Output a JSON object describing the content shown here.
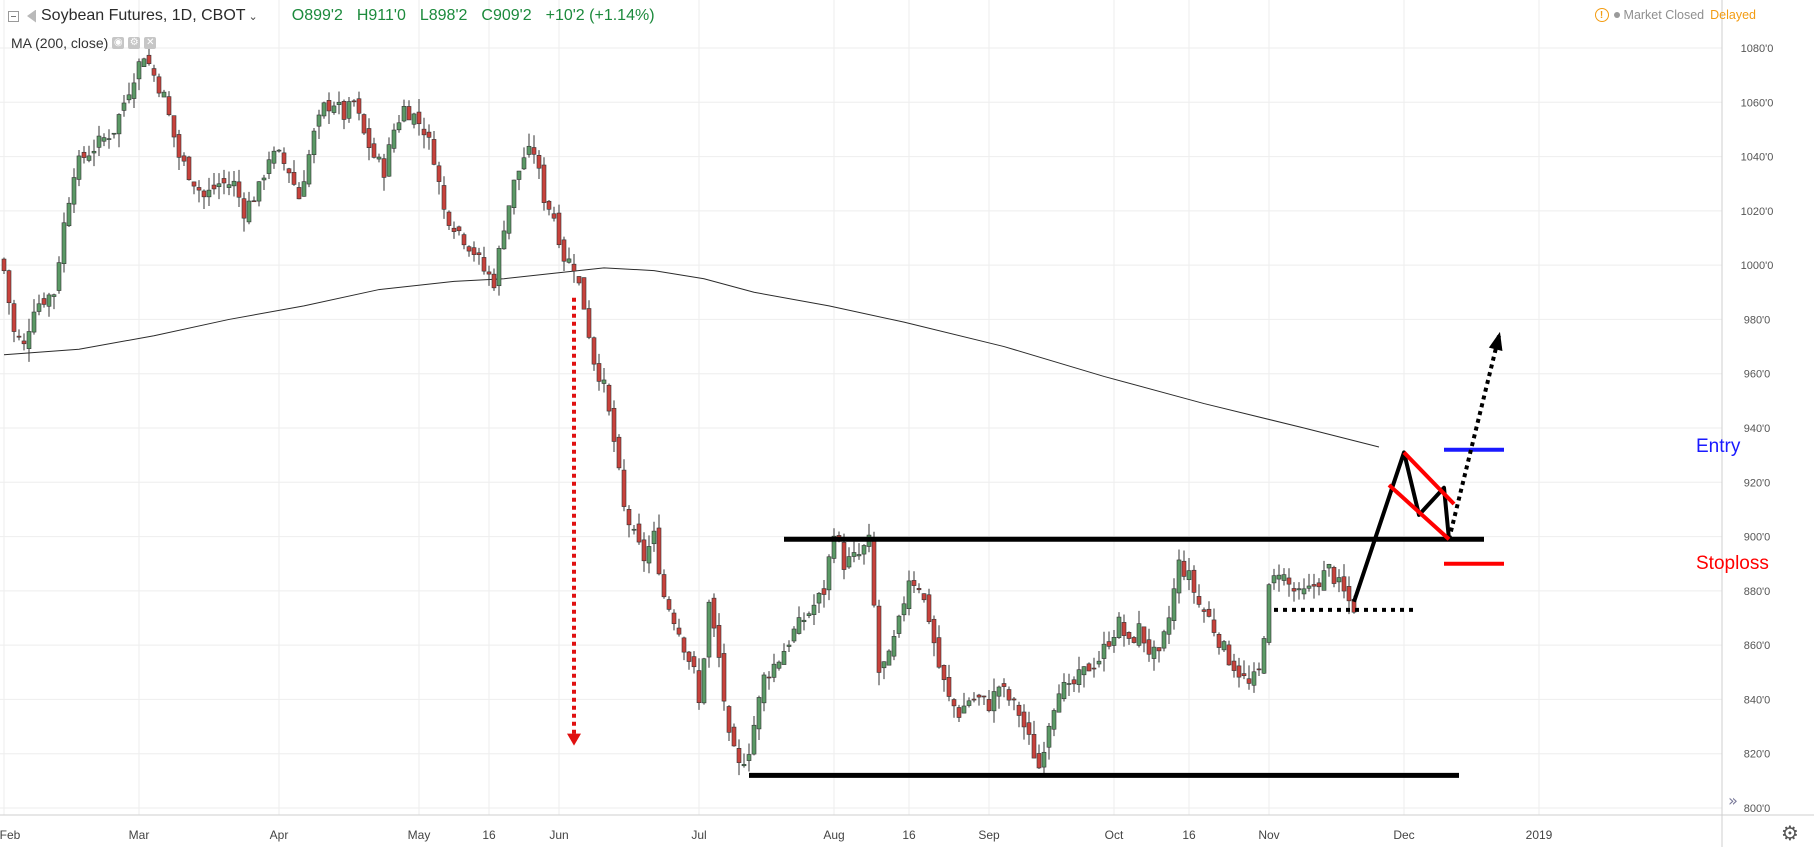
{
  "header": {
    "symbol": "Soybean Futures, 1D, CBOT",
    "open": "O899'2",
    "high": "H911'0",
    "low": "L898'2",
    "close": "C909'2",
    "change": "+10'2 (+1.14%)"
  },
  "indicator": {
    "label": "MA (200, close)"
  },
  "status": {
    "market": "Market Closed",
    "delayed": "Delayed"
  },
  "annotations": {
    "entry": "Entry",
    "stoploss": "Stoploss"
  },
  "colors": {
    "up": "#5b9a66",
    "down": "#c8423c",
    "ma": "#2b2b2b",
    "entry": "#1a1aff",
    "stoploss": "#ff0000",
    "grid": "#eeeeee"
  },
  "chart_data": {
    "type": "candlestick",
    "title": "Soybean Futures, 1D, CBOT",
    "ylim": [
      796,
      1088
    ],
    "y_ticks": [
      "800'0",
      "820'0",
      "840'0",
      "860'0",
      "880'0",
      "900'0",
      "920'0",
      "940'0",
      "960'0",
      "980'0",
      "1000'0",
      "1020'0",
      "1040'0",
      "1060'0",
      "1080'0"
    ],
    "x_ticks": [
      {
        "label": "Feb",
        "day": 0
      },
      {
        "label": "Mar",
        "day": 27
      },
      {
        "label": "Apr",
        "day": 55
      },
      {
        "label": "May",
        "day": 83
      },
      {
        "label": "16",
        "day": 97
      },
      {
        "label": "Jun",
        "day": 111
      },
      {
        "label": "Jul",
        "day": 139
      },
      {
        "label": "Aug",
        "day": 166
      },
      {
        "label": "16",
        "day": 181
      },
      {
        "label": "Sep",
        "day": 197
      },
      {
        "label": "Oct",
        "day": 222
      },
      {
        "label": "16",
        "day": 237
      },
      {
        "label": "Nov",
        "day": 253
      },
      {
        "label": "Dec",
        "day": 280
      },
      {
        "label": "2019",
        "day": 307
      }
    ],
    "anchors": [
      {
        "day": 0,
        "close": 998
      },
      {
        "day": 2,
        "close": 975
      },
      {
        "day": 4,
        "close": 970
      },
      {
        "day": 6,
        "close": 985
      },
      {
        "day": 10,
        "close": 990
      },
      {
        "day": 12,
        "close": 1015
      },
      {
        "day": 14,
        "close": 1035
      },
      {
        "day": 16,
        "close": 1040
      },
      {
        "day": 19,
        "close": 1045
      },
      {
        "day": 22,
        "close": 1050
      },
      {
        "day": 26,
        "close": 1070
      },
      {
        "day": 28,
        "close": 1078
      },
      {
        "day": 32,
        "close": 1062
      },
      {
        "day": 35,
        "close": 1040
      },
      {
        "day": 40,
        "close": 1025
      },
      {
        "day": 43,
        "close": 1030
      },
      {
        "day": 46,
        "close": 1030
      },
      {
        "day": 48,
        "close": 1020
      },
      {
        "day": 51,
        "close": 1028
      },
      {
        "day": 53,
        "close": 1040
      },
      {
        "day": 55,
        "close": 1040
      },
      {
        "day": 57,
        "close": 1035
      },
      {
        "day": 59,
        "close": 1025
      },
      {
        "day": 60,
        "close": 1033
      },
      {
        "day": 62,
        "close": 1048
      },
      {
        "day": 64,
        "close": 1058
      },
      {
        "day": 66,
        "close": 1060
      },
      {
        "day": 68,
        "close": 1055
      },
      {
        "day": 70,
        "close": 1060
      },
      {
        "day": 72,
        "close": 1048
      },
      {
        "day": 74,
        "close": 1040
      },
      {
        "day": 76,
        "close": 1035
      },
      {
        "day": 78,
        "close": 1050
      },
      {
        "day": 80,
        "close": 1058
      },
      {
        "day": 82,
        "close": 1055
      },
      {
        "day": 84,
        "close": 1050
      },
      {
        "day": 86,
        "close": 1040
      },
      {
        "day": 88,
        "close": 1020
      },
      {
        "day": 90,
        "close": 1015
      },
      {
        "day": 92,
        "close": 1010
      },
      {
        "day": 94,
        "close": 1005
      },
      {
        "day": 96,
        "close": 998
      },
      {
        "day": 98,
        "close": 994
      },
      {
        "day": 100,
        "close": 1015
      },
      {
        "day": 102,
        "close": 1030
      },
      {
        "day": 104,
        "close": 1040
      },
      {
        "day": 106,
        "close": 1042
      },
      {
        "day": 108,
        "close": 1025
      },
      {
        "day": 110,
        "close": 1018
      },
      {
        "day": 112,
        "close": 1003
      },
      {
        "day": 114,
        "close": 1000
      },
      {
        "day": 116,
        "close": 985
      },
      {
        "day": 118,
        "close": 965
      },
      {
        "day": 120,
        "close": 955
      },
      {
        "day": 122,
        "close": 935
      },
      {
        "day": 124,
        "close": 910
      },
      {
        "day": 126,
        "close": 900
      },
      {
        "day": 128,
        "close": 892
      },
      {
        "day": 130,
        "close": 900
      },
      {
        "day": 132,
        "close": 878
      },
      {
        "day": 134,
        "close": 870
      },
      {
        "day": 136,
        "close": 860
      },
      {
        "day": 138,
        "close": 850
      },
      {
        "day": 139,
        "close": 838
      },
      {
        "day": 141,
        "close": 875
      },
      {
        "day": 143,
        "close": 855
      },
      {
        "day": 145,
        "close": 825
      },
      {
        "day": 147,
        "close": 815
      },
      {
        "day": 149,
        "close": 822
      },
      {
        "day": 152,
        "close": 848
      },
      {
        "day": 155,
        "close": 855
      },
      {
        "day": 158,
        "close": 865
      },
      {
        "day": 161,
        "close": 872
      },
      {
        "day": 164,
        "close": 880
      },
      {
        "day": 166,
        "close": 903
      },
      {
        "day": 168,
        "close": 890
      },
      {
        "day": 171,
        "close": 893
      },
      {
        "day": 173,
        "close": 898
      },
      {
        "day": 175,
        "close": 850
      },
      {
        "day": 177,
        "close": 855
      },
      {
        "day": 179,
        "close": 868
      },
      {
        "day": 181,
        "close": 885
      },
      {
        "day": 183,
        "close": 882
      },
      {
        "day": 185,
        "close": 870
      },
      {
        "day": 187,
        "close": 852
      },
      {
        "day": 189,
        "close": 840
      },
      {
        "day": 191,
        "close": 835
      },
      {
        "day": 193,
        "close": 840
      },
      {
        "day": 195,
        "close": 840
      },
      {
        "day": 197,
        "close": 838
      },
      {
        "day": 199,
        "close": 845
      },
      {
        "day": 201,
        "close": 840
      },
      {
        "day": 203,
        "close": 835
      },
      {
        "day": 205,
        "close": 825
      },
      {
        "day": 207,
        "close": 815
      },
      {
        "day": 209,
        "close": 832
      },
      {
        "day": 211,
        "close": 845
      },
      {
        "day": 213,
        "close": 843
      },
      {
        "day": 215,
        "close": 848
      },
      {
        "day": 217,
        "close": 852
      },
      {
        "day": 219,
        "close": 855
      },
      {
        "day": 221,
        "close": 862
      },
      {
        "day": 223,
        "close": 868
      },
      {
        "day": 225,
        "close": 860
      },
      {
        "day": 227,
        "close": 866
      },
      {
        "day": 229,
        "close": 858
      },
      {
        "day": 231,
        "close": 855
      },
      {
        "day": 233,
        "close": 870
      },
      {
        "day": 235,
        "close": 890
      },
      {
        "day": 237,
        "close": 885
      },
      {
        "day": 239,
        "close": 875
      },
      {
        "day": 241,
        "close": 870
      },
      {
        "day": 243,
        "close": 862
      },
      {
        "day": 245,
        "close": 855
      },
      {
        "day": 247,
        "close": 850
      },
      {
        "day": 249,
        "close": 845
      },
      {
        "day": 251,
        "close": 850
      },
      {
        "day": 253,
        "close": 880
      },
      {
        "day": 255,
        "close": 888
      },
      {
        "day": 257,
        "close": 882
      },
      {
        "day": 259,
        "close": 878
      },
      {
        "day": 261,
        "close": 880
      },
      {
        "day": 263,
        "close": 884
      },
      {
        "day": 265,
        "close": 888
      },
      {
        "day": 267,
        "close": 882
      },
      {
        "day": 269,
        "close": 876
      },
      {
        "day": 270,
        "close": 874
      }
    ],
    "ma_200": [
      {
        "day": 0,
        "value": 967
      },
      {
        "day": 15,
        "value": 969
      },
      {
        "day": 30,
        "value": 974
      },
      {
        "day": 45,
        "value": 980
      },
      {
        "day": 60,
        "value": 985
      },
      {
        "day": 75,
        "value": 991
      },
      {
        "day": 90,
        "value": 994
      },
      {
        "day": 100,
        "value": 995
      },
      {
        "day": 110,
        "value": 997
      },
      {
        "day": 120,
        "value": 999
      },
      {
        "day": 130,
        "value": 998
      },
      {
        "day": 140,
        "value": 995
      },
      {
        "day": 150,
        "value": 990
      },
      {
        "day": 165,
        "value": 985
      },
      {
        "day": 180,
        "value": 979
      },
      {
        "day": 200,
        "value": 970
      },
      {
        "day": 220,
        "value": 959
      },
      {
        "day": 240,
        "value": 949
      },
      {
        "day": 260,
        "value": 940
      },
      {
        "day": 275,
        "value": 933
      }
    ],
    "drawings": {
      "resistance": {
        "price": 899,
        "day_start": 156,
        "day_end": 296
      },
      "support": {
        "price": 812,
        "day_start": 149,
        "day_end": 291
      },
      "dotted_support": {
        "price": 873,
        "day_start": 254,
        "day_end": 282
      },
      "entry": {
        "price": 932,
        "day_start": 288,
        "day_end": 300
      },
      "stoploss": {
        "price": 890,
        "day_start": 288,
        "day_end": 300
      },
      "red_arrow": {
        "day": 114,
        "from": 988,
        "to": 823
      },
      "black_path": [
        [
          270,
          876
        ],
        [
          280,
          931
        ],
        [
          283,
          908
        ],
        [
          288,
          918
        ],
        [
          289,
          899
        ],
        [
          299,
          974
        ]
      ]
    },
    "annotations": [
      "Entry",
      "Stoploss"
    ]
  }
}
